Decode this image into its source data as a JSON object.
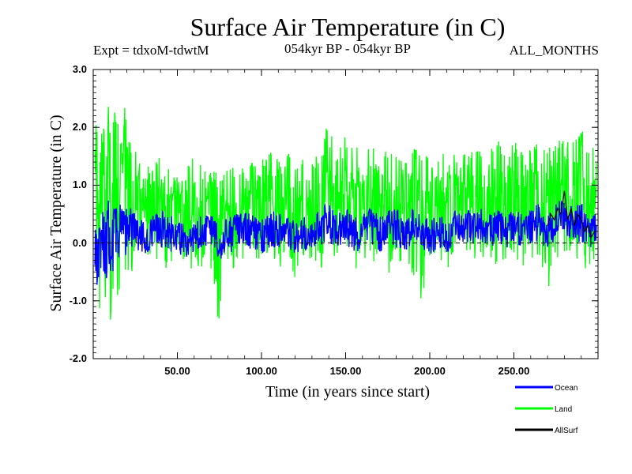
{
  "chart_data": {
    "type": "line",
    "title": "Surface Air Temperature (in C)",
    "expt_label": "Expt = tdxoM-tdwtM",
    "period_label": "054kyr BP - 054kyr BP",
    "months_label": "ALL_MONTHS",
    "xlabel": "Time (in years since start)",
    "ylabel": "Surface Air Temperature (in C)",
    "xlim": [
      0,
      300
    ],
    "ylim": [
      -2.0,
      3.0
    ],
    "xticks": [
      {
        "value": 50,
        "label": "50.00"
      },
      {
        "value": 100,
        "label": "100.00"
      },
      {
        "value": 150,
        "label": "150.00"
      },
      {
        "value": 200,
        "label": "200.00"
      },
      {
        "value": 250,
        "label": "250.00"
      }
    ],
    "yticks": [
      {
        "value": -2.0,
        "label": "-2.0"
      },
      {
        "value": -1.0,
        "label": "-1.0"
      },
      {
        "value": 0.0,
        "label": "0.0"
      },
      {
        "value": 1.0,
        "label": "1.0"
      },
      {
        "value": 2.0,
        "label": "2.0"
      },
      {
        "value": 3.0,
        "label": "3.0"
      }
    ],
    "zero_line": true,
    "legend_position": "bottom-right",
    "series": [
      {
        "name": "Land",
        "color": "#00ff00",
        "x": [
          1,
          3,
          5,
          7,
          9,
          11,
          13,
          15,
          17,
          19,
          21,
          25,
          30,
          35,
          40,
          45,
          50,
          55,
          60,
          65,
          70,
          75,
          80,
          85,
          90,
          95,
          100,
          105,
          110,
          115,
          120,
          125,
          130,
          135,
          140,
          145,
          150,
          155,
          160,
          165,
          170,
          175,
          180,
          185,
          190,
          195,
          200,
          205,
          210,
          215,
          220,
          225,
          230,
          235,
          240,
          245,
          250,
          255,
          260,
          265,
          270,
          275,
          280,
          285,
          290,
          295,
          299
        ],
        "values": [
          1.0,
          0.4,
          1.2,
          0.2,
          1.6,
          0.0,
          1.5,
          0.3,
          1.7,
          0.5,
          1.4,
          0.8,
          0.5,
          0.9,
          0.7,
          0.6,
          0.7,
          0.2,
          0.5,
          0.4,
          0.8,
          0.3,
          0.6,
          0.4,
          0.8,
          0.7,
          0.6,
          0.8,
          0.5,
          0.9,
          0.6,
          0.7,
          0.5,
          0.8,
          0.9,
          0.6,
          0.9,
          0.5,
          0.7,
          0.8,
          0.6,
          0.9,
          0.7,
          0.5,
          0.8,
          0.6,
          0.6,
          0.7,
          0.5,
          0.8,
          0.6,
          0.9,
          0.7,
          0.6,
          0.8,
          0.7,
          0.8,
          0.6,
          0.7,
          0.8,
          0.6,
          0.9,
          0.8,
          0.7,
          0.9,
          0.6,
          0.8
        ],
        "upper": [
          2.1,
          2.4,
          1.9,
          2.2,
          2.5,
          2.0,
          2.3,
          2.4,
          2.2,
          2.5,
          1.8,
          1.6,
          1.3,
          1.4,
          1.5,
          1.3,
          1.2,
          1.3,
          1.5,
          1.4,
          1.5,
          1.2,
          1.3,
          1.4,
          1.3,
          1.4,
          1.5,
          1.6,
          1.5,
          1.7,
          1.4,
          1.5,
          1.6,
          1.8,
          2.2,
          1.6,
          1.9,
          1.7,
          1.6,
          1.8,
          1.5,
          1.9,
          1.7,
          1.6,
          1.8,
          1.5,
          1.6,
          1.7,
          1.5,
          1.6,
          1.6,
          1.9,
          1.7,
          1.6,
          1.8,
          1.7,
          1.8,
          1.6,
          1.7,
          1.8,
          1.6,
          1.9,
          1.8,
          1.9,
          2.0,
          1.7,
          1.7
        ],
        "lower": [
          -0.8,
          -1.3,
          -1.0,
          -1.7,
          -1.2,
          -1.5,
          -0.9,
          -1.2,
          -0.8,
          -1.0,
          -0.6,
          -0.4,
          -0.3,
          -0.2,
          -0.5,
          -0.4,
          -0.3,
          -0.5,
          -0.6,
          -0.4,
          -0.5,
          -1.5,
          -0.4,
          -0.5,
          -0.3,
          -0.4,
          -0.3,
          -0.2,
          -0.5,
          -0.3,
          -1.0,
          -0.4,
          -0.3,
          -0.5,
          -0.2,
          -0.3,
          -0.2,
          -0.5,
          -0.3,
          -0.4,
          -0.2,
          -0.6,
          -0.3,
          -0.4,
          -0.6,
          -1.0,
          -0.3,
          -0.2,
          -0.5,
          -0.3,
          -0.2,
          -0.4,
          -0.3,
          -0.2,
          -0.4,
          -0.3,
          -0.2,
          -0.4,
          -0.3,
          -0.2,
          -0.9,
          -0.3,
          -0.2,
          -0.3,
          -0.4,
          -0.5,
          -0.2
        ]
      },
      {
        "name": "Ocean",
        "color": "#0000ff",
        "x": [
          1,
          3,
          5,
          7,
          9,
          11,
          13,
          15,
          17,
          19,
          21,
          25,
          30,
          35,
          40,
          45,
          50,
          55,
          60,
          65,
          70,
          75,
          80,
          85,
          90,
          95,
          100,
          105,
          110,
          115,
          120,
          125,
          130,
          135,
          140,
          145,
          150,
          155,
          160,
          165,
          170,
          175,
          180,
          185,
          190,
          195,
          200,
          205,
          210,
          215,
          220,
          225,
          230,
          235,
          240,
          245,
          250,
          255,
          260,
          265,
          270,
          275,
          280,
          285,
          290,
          295,
          299
        ],
        "values": [
          0.1,
          -0.3,
          0.2,
          -0.4,
          0.3,
          -0.2,
          0.4,
          0.0,
          0.5,
          0.1,
          0.4,
          0.2,
          0.1,
          0.2,
          0.3,
          0.1,
          0.2,
          0.0,
          0.1,
          0.2,
          0.3,
          0.0,
          0.1,
          0.2,
          0.3,
          0.2,
          0.1,
          0.3,
          0.2,
          0.3,
          0.1,
          0.2,
          0.1,
          0.3,
          0.4,
          0.2,
          0.3,
          0.1,
          0.2,
          0.3,
          0.1,
          0.4,
          0.3,
          0.1,
          0.3,
          0.2,
          0.1,
          0.2,
          0.0,
          0.3,
          0.2,
          0.4,
          0.3,
          0.2,
          0.3,
          0.2,
          0.4,
          0.2,
          0.3,
          0.4,
          0.2,
          0.4,
          0.5,
          0.3,
          0.4,
          0.2,
          0.3
        ],
        "upper": [
          0.4,
          0.3,
          0.7,
          0.5,
          0.8,
          0.6,
          0.7,
          0.8,
          0.9,
          0.7,
          0.7,
          0.5,
          0.4,
          0.5,
          0.6,
          0.5,
          0.4,
          0.3,
          0.4,
          0.5,
          0.5,
          0.4,
          0.5,
          0.5,
          0.6,
          0.5,
          0.4,
          0.5,
          0.6,
          0.5,
          0.4,
          0.5,
          0.4,
          0.6,
          0.7,
          0.5,
          0.6,
          0.5,
          0.5,
          0.6,
          0.5,
          0.6,
          0.6,
          0.5,
          0.6,
          0.5,
          0.4,
          0.5,
          0.4,
          0.6,
          0.5,
          0.7,
          0.6,
          0.5,
          0.6,
          0.5,
          0.7,
          0.5,
          0.6,
          0.7,
          0.5,
          0.7,
          0.8,
          0.6,
          0.7,
          0.5,
          0.5
        ],
        "lower": [
          -0.5,
          -0.9,
          -0.6,
          -0.8,
          -0.5,
          -0.6,
          -0.3,
          -0.4,
          -0.2,
          -0.3,
          -0.1,
          -0.1,
          -0.2,
          -0.1,
          -0.1,
          -0.2,
          -0.3,
          -0.3,
          -0.2,
          -0.1,
          -0.1,
          -0.3,
          -0.2,
          -0.1,
          -0.1,
          -0.1,
          -0.2,
          -0.1,
          -0.1,
          -0.1,
          -0.2,
          -0.1,
          -0.2,
          -0.1,
          0.0,
          -0.1,
          0.0,
          -0.2,
          -0.1,
          0.0,
          -0.2,
          0.0,
          -0.1,
          -0.2,
          0.0,
          -0.1,
          -0.2,
          -0.1,
          -0.2,
          0.0,
          -0.1,
          0.0,
          0.0,
          -0.1,
          0.0,
          -0.1,
          0.0,
          -0.1,
          0.0,
          0.0,
          -0.1,
          0.0,
          0.1,
          0.0,
          0.0,
          -0.1,
          0.0
        ]
      },
      {
        "name": "AllSurf",
        "color": "#000000",
        "x": [
          270,
          272,
          274,
          276,
          278,
          280,
          282,
          284,
          286,
          288,
          290,
          292,
          294,
          296,
          298
        ],
        "values": [
          0.3,
          0.5,
          0.4,
          0.6,
          0.5,
          0.9,
          0.4,
          0.6,
          0.3,
          0.5,
          0.4,
          0.2,
          0.3,
          0.1,
          0.2
        ]
      }
    ]
  }
}
